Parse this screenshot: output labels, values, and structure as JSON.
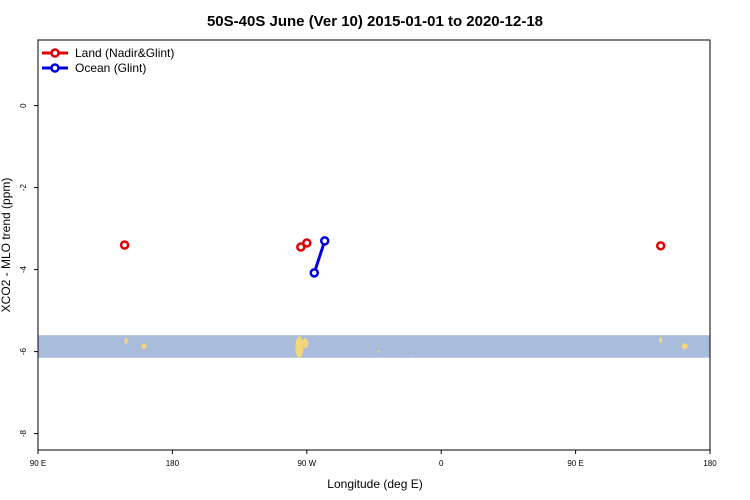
{
  "chart_data": {
    "type": "line",
    "title": "50S-40S June (Ver 10)   2015-01-01 to 2020-12-18",
    "xlabel": "Longitude (deg E)",
    "ylabel": "XCO2 - MLO trend (ppm)",
    "xlim": [
      90,
      450
    ],
    "ylim": [
      -8.4,
      1.6
    ],
    "x_ticks": [
      {
        "value": 90,
        "label": "90 E"
      },
      {
        "value": 180,
        "label": "180"
      },
      {
        "value": 270,
        "label": "90 W"
      },
      {
        "value": 360,
        "label": "0"
      },
      {
        "value": 450,
        "label": "90 E"
      },
      {
        "value": 540,
        "label": "180"
      }
    ],
    "y_ticks": [
      {
        "value": 0,
        "label": "0"
      },
      {
        "value": -2,
        "label": "-2"
      },
      {
        "value": -4,
        "label": "-4"
      },
      {
        "value": -6,
        "label": "-6"
      },
      {
        "value": -8,
        "label": "-8"
      }
    ],
    "grid": false,
    "legend_position": "top-left",
    "latitude_band": {
      "y_from": -5.6,
      "y_to": -6.15,
      "color": "#a9bcdb",
      "land_color": "#f5d57a"
    },
    "series": [
      {
        "name": "Land (Nadir&Glint)",
        "color": "#e00000",
        "points": [
          [
            148,
            -3.4
          ],
          [
            266,
            -3.45
          ],
          [
            270,
            -3.35
          ],
          [
            507,
            -3.42
          ]
        ]
      },
      {
        "name": "Ocean (Glint)",
        "color": "#0000e0",
        "points": [
          [
            275,
            -4.08
          ],
          [
            282,
            -3.3
          ]
        ]
      }
    ]
  }
}
